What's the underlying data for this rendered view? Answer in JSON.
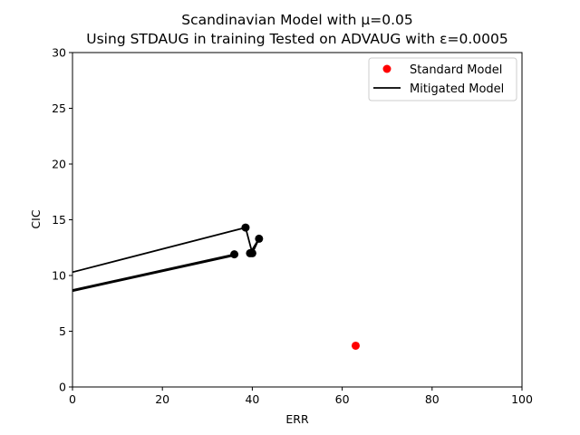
{
  "chart_data": {
    "type": "scatter",
    "title": "Scandinavian Model with μ=0.05",
    "subtitle": "Using STDAUG in training Tested on ADVAUG with ε=0.0005",
    "xlabel": "ERR",
    "ylabel": "CIC",
    "xlim": [
      0,
      100
    ],
    "ylim": [
      0,
      30
    ],
    "xticks": [
      0,
      20,
      40,
      60,
      80,
      100
    ],
    "yticks": [
      0,
      5,
      10,
      15,
      20,
      25,
      30
    ],
    "grid": false,
    "legend_position": "top-right",
    "series": [
      {
        "name": "Standard Model",
        "kind": "points",
        "color": "#ff0000",
        "points": [
          {
            "x": 63.0,
            "y": 3.7
          }
        ]
      },
      {
        "name": "Mitigated Model",
        "kind": "line-with-markers",
        "color": "#000000",
        "segments": [
          [
            {
              "x": 0,
              "y": 10.3
            },
            {
              "x": 38.5,
              "y": 14.3
            },
            {
              "x": 40.0,
              "y": 12.0
            },
            {
              "x": 41.5,
              "y": 13.3
            },
            {
              "x": 39.5,
              "y": 12.0
            }
          ],
          [
            {
              "x": 0,
              "y": 8.7
            },
            {
              "x": 36.0,
              "y": 11.9
            }
          ],
          [
            {
              "x": 0,
              "y": 8.6
            },
            {
              "x": 36.0,
              "y": 11.8
            }
          ]
        ],
        "markers": [
          {
            "x": 38.5,
            "y": 14.3
          },
          {
            "x": 41.5,
            "y": 13.3
          },
          {
            "x": 36.0,
            "y": 11.9
          },
          {
            "x": 39.5,
            "y": 12.0
          },
          {
            "x": 40.0,
            "y": 12.0
          }
        ]
      }
    ]
  }
}
